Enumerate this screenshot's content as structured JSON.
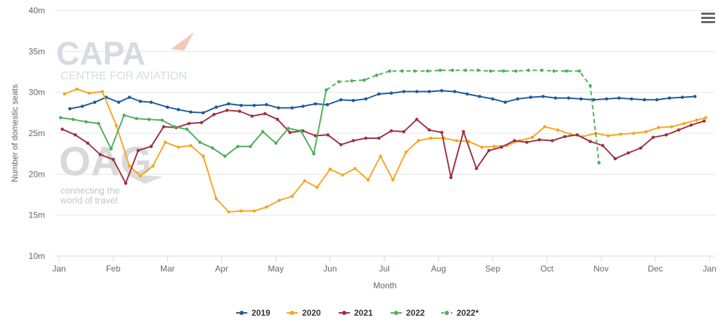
{
  "chart_data": {
    "type": "line",
    "ylabel": "Number of domestic seats",
    "xlabel": "Month",
    "ylim": [
      10,
      40
    ],
    "yticks": [
      "10m",
      "15m",
      "20m",
      "25m",
      "30m",
      "35m",
      "40m"
    ],
    "xticks": [
      "Jan",
      "Feb",
      "Mar",
      "Apr",
      "May",
      "Jun",
      "Jul",
      "Aug",
      "Sep",
      "Oct",
      "Nov",
      "Dec",
      "Jan"
    ],
    "grid": true,
    "legend": "bottom-center",
    "series": [
      {
        "name": "2019",
        "color": "#1f5a99",
        "dashed": false,
        "points": [
          [
            0.2,
            28.0
          ],
          [
            0.43,
            28.3
          ],
          [
            0.66,
            28.8
          ],
          [
            0.87,
            29.4
          ],
          [
            1.1,
            28.8
          ],
          [
            1.3,
            29.4
          ],
          [
            1.5,
            28.9
          ],
          [
            1.7,
            28.8
          ],
          [
            2.0,
            28.2
          ],
          [
            2.2,
            27.9
          ],
          [
            2.43,
            27.6
          ],
          [
            2.66,
            27.5
          ],
          [
            2.9,
            28.2
          ],
          [
            3.13,
            28.6
          ],
          [
            3.36,
            28.4
          ],
          [
            3.6,
            28.4
          ],
          [
            3.83,
            28.5
          ],
          [
            4.05,
            28.1
          ],
          [
            4.3,
            28.1
          ],
          [
            4.5,
            28.3
          ],
          [
            4.73,
            28.6
          ],
          [
            4.95,
            28.5
          ],
          [
            5.2,
            29.1
          ],
          [
            5.43,
            29.0
          ],
          [
            5.66,
            29.2
          ],
          [
            5.9,
            29.8
          ],
          [
            6.13,
            29.9
          ],
          [
            6.36,
            30.1
          ],
          [
            6.6,
            30.1
          ],
          [
            6.83,
            30.1
          ],
          [
            7.06,
            30.2
          ],
          [
            7.3,
            30.1
          ],
          [
            7.53,
            29.8
          ],
          [
            7.76,
            29.5
          ],
          [
            8.0,
            29.2
          ],
          [
            8.23,
            28.8
          ],
          [
            8.46,
            29.2
          ],
          [
            8.7,
            29.4
          ],
          [
            8.93,
            29.5
          ],
          [
            9.16,
            29.3
          ],
          [
            9.4,
            29.3
          ],
          [
            9.63,
            29.2
          ],
          [
            9.86,
            29.1
          ],
          [
            10.1,
            29.2
          ],
          [
            10.33,
            29.3
          ],
          [
            10.56,
            29.2
          ],
          [
            10.8,
            29.1
          ],
          [
            11.03,
            29.1
          ],
          [
            11.26,
            29.3
          ],
          [
            11.5,
            29.4
          ],
          [
            11.73,
            29.5
          ]
        ]
      },
      {
        "name": "2020",
        "color": "#f5a623",
        "dashed": false,
        "points": [
          [
            0.1,
            29.8
          ],
          [
            0.33,
            30.4
          ],
          [
            0.56,
            29.9
          ],
          [
            0.8,
            30.1
          ],
          [
            1.06,
            25.9
          ],
          [
            1.3,
            21.0
          ],
          [
            1.5,
            19.8
          ],
          [
            1.73,
            21.0
          ],
          [
            1.96,
            23.9
          ],
          [
            2.2,
            23.3
          ],
          [
            2.43,
            23.5
          ],
          [
            2.66,
            22.2
          ],
          [
            2.9,
            17.0
          ],
          [
            3.13,
            15.4
          ],
          [
            3.36,
            15.5
          ],
          [
            3.6,
            15.5
          ],
          [
            3.83,
            16.0
          ],
          [
            4.06,
            16.8
          ],
          [
            4.3,
            17.3
          ],
          [
            4.53,
            19.2
          ],
          [
            4.76,
            18.4
          ],
          [
            5.0,
            20.6
          ],
          [
            5.23,
            19.9
          ],
          [
            5.46,
            20.7
          ],
          [
            5.7,
            19.3
          ],
          [
            5.93,
            22.2
          ],
          [
            6.16,
            19.3
          ],
          [
            6.4,
            22.7
          ],
          [
            6.63,
            24.1
          ],
          [
            6.86,
            24.4
          ],
          [
            7.1,
            24.4
          ],
          [
            7.33,
            24.1
          ],
          [
            7.56,
            24.0
          ],
          [
            7.8,
            23.3
          ],
          [
            8.03,
            23.4
          ],
          [
            8.26,
            23.5
          ],
          [
            8.5,
            24.1
          ],
          [
            8.73,
            24.5
          ],
          [
            8.96,
            25.8
          ],
          [
            9.2,
            25.4
          ],
          [
            9.43,
            24.9
          ],
          [
            9.66,
            24.6
          ],
          [
            9.9,
            25.0
          ],
          [
            10.13,
            24.7
          ],
          [
            10.36,
            24.9
          ],
          [
            10.6,
            25.0
          ],
          [
            10.83,
            25.2
          ],
          [
            11.06,
            25.7
          ],
          [
            11.3,
            25.8
          ],
          [
            11.53,
            26.2
          ],
          [
            11.76,
            26.6
          ],
          [
            11.93,
            26.9
          ]
        ]
      },
      {
        "name": "2021",
        "color": "#a03040",
        "dashed": false,
        "points": [
          [
            0.06,
            25.5
          ],
          [
            0.3,
            24.8
          ],
          [
            0.53,
            23.8
          ],
          [
            0.76,
            22.4
          ],
          [
            1.0,
            21.8
          ],
          [
            1.23,
            18.9
          ],
          [
            1.46,
            22.9
          ],
          [
            1.7,
            23.4
          ],
          [
            1.93,
            25.8
          ],
          [
            2.16,
            25.7
          ],
          [
            2.4,
            26.2
          ],
          [
            2.63,
            26.3
          ],
          [
            2.86,
            27.3
          ],
          [
            3.1,
            27.8
          ],
          [
            3.33,
            27.7
          ],
          [
            3.56,
            27.1
          ],
          [
            3.8,
            27.4
          ],
          [
            4.03,
            26.7
          ],
          [
            4.26,
            25.1
          ],
          [
            4.5,
            25.3
          ],
          [
            4.73,
            24.7
          ],
          [
            4.96,
            24.8
          ],
          [
            5.2,
            23.6
          ],
          [
            5.43,
            24.1
          ],
          [
            5.66,
            24.4
          ],
          [
            5.9,
            24.4
          ],
          [
            6.13,
            25.3
          ],
          [
            6.36,
            25.2
          ],
          [
            6.6,
            26.7
          ],
          [
            6.83,
            25.4
          ],
          [
            7.06,
            25.1
          ],
          [
            7.23,
            19.6
          ],
          [
            7.46,
            25.2
          ],
          [
            7.7,
            20.7
          ],
          [
            7.93,
            22.9
          ],
          [
            8.16,
            23.3
          ],
          [
            8.4,
            24.1
          ],
          [
            8.63,
            23.9
          ],
          [
            8.86,
            24.2
          ],
          [
            9.1,
            24.1
          ],
          [
            9.33,
            24.6
          ],
          [
            9.56,
            24.8
          ],
          [
            9.8,
            24.0
          ],
          [
            10.03,
            23.5
          ],
          [
            10.26,
            21.9
          ],
          [
            10.5,
            22.6
          ],
          [
            10.73,
            23.2
          ],
          [
            10.96,
            24.5
          ],
          [
            11.2,
            24.8
          ],
          [
            11.43,
            25.4
          ],
          [
            11.66,
            26.0
          ],
          [
            11.9,
            26.5
          ]
        ]
      },
      {
        "name": "2022",
        "color": "#4daf5a",
        "dashed": false,
        "points": [
          [
            0.03,
            26.9
          ],
          [
            0.26,
            26.7
          ],
          [
            0.5,
            26.4
          ],
          [
            0.73,
            26.2
          ],
          [
            0.96,
            23.1
          ],
          [
            1.2,
            27.2
          ],
          [
            1.43,
            26.8
          ],
          [
            1.66,
            26.7
          ],
          [
            1.9,
            26.6
          ],
          [
            2.13,
            25.8
          ],
          [
            2.36,
            25.5
          ],
          [
            2.6,
            23.9
          ],
          [
            2.83,
            23.2
          ],
          [
            3.06,
            22.2
          ],
          [
            3.3,
            23.4
          ],
          [
            3.53,
            23.4
          ],
          [
            3.76,
            25.2
          ],
          [
            4.0,
            23.8
          ],
          [
            4.23,
            25.6
          ],
          [
            4.46,
            25.3
          ],
          [
            4.7,
            22.5
          ],
          [
            4.93,
            30.3
          ]
        ]
      },
      {
        "name": "2022*",
        "color": "#4daf5a",
        "dashed": true,
        "points": [
          [
            4.93,
            30.3
          ],
          [
            5.16,
            31.3
          ],
          [
            5.4,
            31.4
          ],
          [
            5.63,
            31.5
          ],
          [
            5.86,
            32.1
          ],
          [
            6.1,
            32.6
          ],
          [
            6.33,
            32.6
          ],
          [
            6.56,
            32.6
          ],
          [
            6.8,
            32.6
          ],
          [
            7.03,
            32.7
          ],
          [
            7.26,
            32.7
          ],
          [
            7.5,
            32.7
          ],
          [
            7.73,
            32.7
          ],
          [
            7.96,
            32.6
          ],
          [
            8.2,
            32.6
          ],
          [
            8.43,
            32.6
          ],
          [
            8.66,
            32.7
          ],
          [
            8.9,
            32.7
          ],
          [
            9.13,
            32.6
          ],
          [
            9.36,
            32.6
          ],
          [
            9.6,
            32.6
          ],
          [
            9.8,
            30.8
          ],
          [
            9.96,
            21.4
          ]
        ]
      }
    ]
  },
  "watermarks": {
    "capa_logo": "CAPA",
    "capa_sub": "CENTRE FOR AVIATION",
    "oag_logo": "OAG",
    "oag_sub": "connecting the world of travel"
  },
  "menu": {
    "icon": "hamburger-icon"
  }
}
